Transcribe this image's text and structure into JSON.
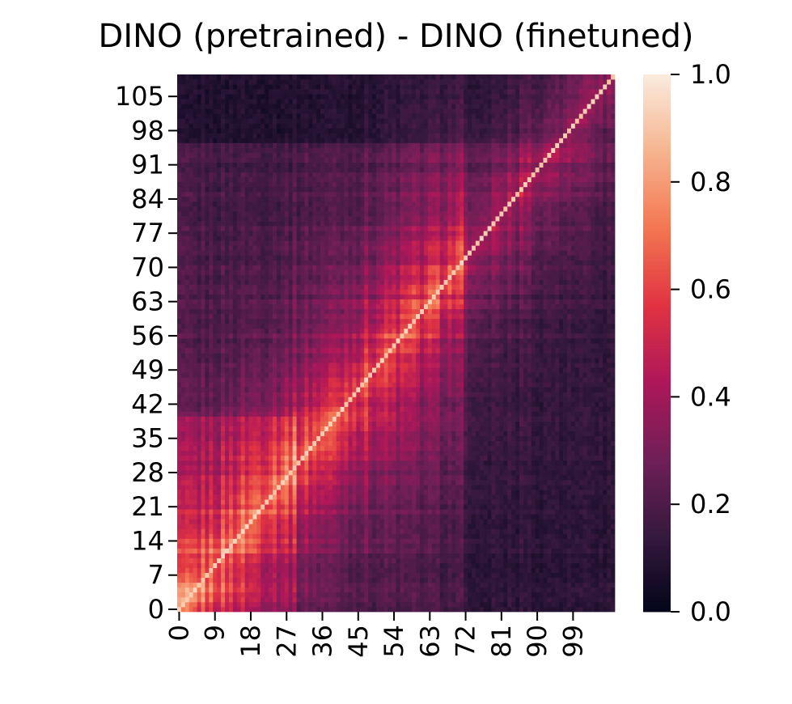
{
  "chart_data": {
    "type": "heatmap",
    "title": "DINO (pretrained) - DINO (finetuned)",
    "xlabel": "",
    "ylabel": "",
    "n_rows": 110,
    "n_cols": 110,
    "x_tick_labels": [
      "0",
      "9",
      "18",
      "27",
      "36",
      "45",
      "54",
      "63",
      "72",
      "81",
      "90",
      "99"
    ],
    "y_tick_labels": [
      "0",
      "7",
      "14",
      "21",
      "28",
      "35",
      "42",
      "49",
      "56",
      "63",
      "70",
      "77",
      "84",
      "91",
      "98",
      "105"
    ],
    "y_axis_direction": "ascending upward",
    "colorbar": {
      "range": [
        0.0,
        1.0
      ],
      "tick_labels": [
        "0.0",
        "0.2",
        "0.4",
        "0.6",
        "0.8",
        "1.0"
      ],
      "colormap": "rocket",
      "stops": [
        "#03051a",
        "#36193e",
        "#701f57",
        "#ae1759",
        "#e13342",
        "#f37651",
        "#f6b48f",
        "#faebdd"
      ]
    },
    "pattern_notes": {
      "diagonal_peak": 0.92,
      "low_similarity_columns_start": 72,
      "value_range_observed": [
        0.02,
        0.95
      ]
    }
  }
}
